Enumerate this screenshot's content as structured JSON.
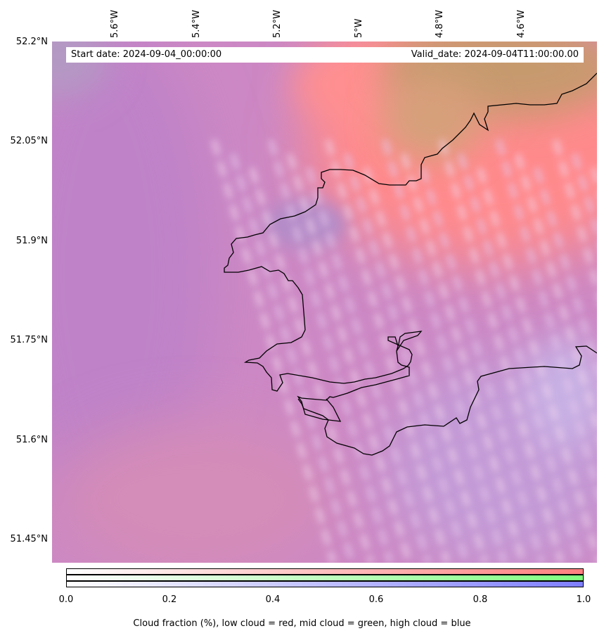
{
  "header": {
    "start_date": "Start date: 2024-09-04_00:00:00",
    "valid_date": "Valid_date: 2024-09-04T11:00:00.00"
  },
  "axes": {
    "longitude_labels": [
      "5.6°W",
      "5.4°W",
      "5.2°W",
      "5°W",
      "4.8°W",
      "4.6°W"
    ],
    "latitude_labels": [
      "52.2°N",
      "52.05°N",
      "51.9°N",
      "51.75°N",
      "51.6°N",
      "51.45°N"
    ]
  },
  "colorbar": {
    "tick_labels": [
      "0.0",
      "0.2",
      "0.4",
      "0.6",
      "0.8",
      "1.0"
    ],
    "caption": "Cloud fraction (%), low cloud = red, mid cloud = green, high cloud = blue",
    "colors": {
      "low": "#ff7f7f",
      "mid": "#7fff7f",
      "high": "#7f7fff"
    }
  },
  "map": {
    "coastline_color": "#000000",
    "base_color": "#cc88c4"
  }
}
